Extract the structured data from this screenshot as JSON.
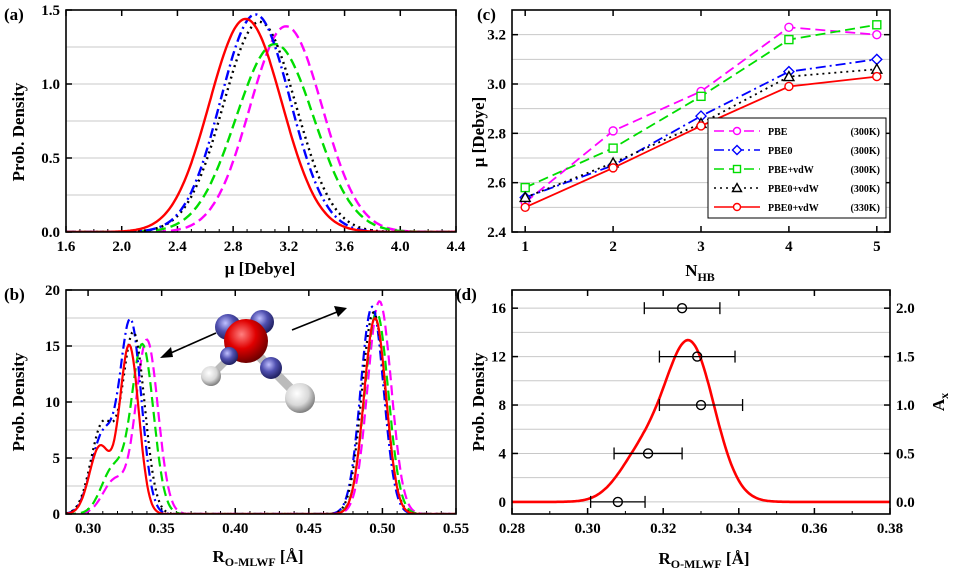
{
  "colors": {
    "magenta": "#ff00ff",
    "blue": "#0000ff",
    "green": "#00dd00",
    "black": "#000000",
    "red": "#ff0000",
    "grid": "#c8c8c8"
  },
  "chart_data": [
    {
      "panel": "(a)",
      "type": "line",
      "xlabel": "μ [Debye]",
      "ylabel": "Prob. Density",
      "xlim": [
        1.6,
        4.4
      ],
      "ylim": [
        0,
        1.5
      ],
      "xticks": [
        "1.6",
        "2.0",
        "2.4",
        "2.8",
        "3.2",
        "3.6",
        "4.0",
        "4.4"
      ],
      "yticks": [
        "0.0",
        "0.5",
        "1.0",
        "1.5"
      ],
      "grid": true,
      "series": [
        {
          "color": "magenta",
          "dash": "10,5",
          "peak_x": 3.18,
          "peak_y": 1.39,
          "width": 0.26
        },
        {
          "color": "green",
          "dash": "10,5",
          "peak_x": 3.1,
          "peak_y": 1.27,
          "width": 0.28
        },
        {
          "color": "black",
          "dash": "2,4",
          "peak_x": 2.99,
          "peak_y": 1.42,
          "width": 0.26
        },
        {
          "color": "blue",
          "dash": "10,4,2,4",
          "peak_x": 2.96,
          "peak_y": 1.47,
          "width": 0.25
        },
        {
          "color": "red",
          "dash": "",
          "peak_x": 2.89,
          "peak_y": 1.44,
          "width": 0.26
        }
      ]
    },
    {
      "panel": "(b)",
      "type": "line",
      "xlabel": "R",
      "xlabel_sub": "O-MLWF",
      "xlabel_unit": " [Å]",
      "ylabel": "Prob. Density",
      "xlim": [
        0.285,
        0.55
      ],
      "ylim": [
        0,
        20
      ],
      "xticks": [
        "0.30",
        "0.35",
        "0.40",
        "0.45",
        "0.50",
        "0.55"
      ],
      "yticks": [
        "0",
        "5",
        "10",
        "15",
        "20"
      ],
      "grid": true,
      "series": [
        {
          "color": "magenta",
          "dash": "10,5",
          "peaks": [
            [
              0.34,
              15.5,
              0.0075
            ],
            [
              0.498,
              19.0,
              0.008
            ]
          ],
          "shoulder": [
            0.318,
            3.0,
            0.008
          ]
        },
        {
          "color": "green",
          "dash": "10,5",
          "peaks": [
            [
              0.337,
              15.0,
              0.0075
            ],
            [
              0.496,
              18.0,
              0.008
            ]
          ],
          "shoulder": [
            0.317,
            4.0,
            0.008
          ]
        },
        {
          "color": "blue",
          "dash": "10,4,2,4",
          "peaks": [
            [
              0.329,
              17.0,
              0.0072
            ],
            [
              0.493,
              18.5,
              0.0078
            ]
          ],
          "shoulder": [
            0.31,
            7.0,
            0.008
          ]
        },
        {
          "color": "black",
          "dash": "2,4",
          "peaks": [
            [
              0.331,
              16.0,
              0.0075
            ],
            [
              0.494,
              18.0,
              0.008
            ]
          ],
          "shoulder": [
            0.31,
            8.0,
            0.008
          ]
        },
        {
          "color": "red",
          "dash": "",
          "peaks": [
            [
              0.328,
              15.0,
              0.0065
            ],
            [
              0.495,
              17.5,
              0.0075
            ]
          ],
          "shoulder": [
            0.308,
            6.0,
            0.007
          ]
        }
      ]
    },
    {
      "panel": "(c)",
      "type": "line",
      "xlabel": "N",
      "xlabel_sub": "HB",
      "ylabel": "μ [Debye]",
      "xlim": [
        0.85,
        5.15
      ],
      "ylim": [
        2.4,
        3.3
      ],
      "xticks": [
        "1",
        "2",
        "3",
        "4",
        "5"
      ],
      "yticks": [
        "2.4",
        "2.6",
        "2.8",
        "3.0",
        "3.2"
      ],
      "grid": true,
      "x": [
        1,
        2,
        3,
        4,
        5
      ],
      "series": [
        {
          "name": "PBE",
          "temp": "(300K)",
          "color": "magenta",
          "dash": "10,5",
          "marker": "circle",
          "values": [
            2.52,
            2.81,
            2.97,
            3.23,
            3.2
          ]
        },
        {
          "name": "PBE0",
          "temp": "(300K)",
          "color": "blue",
          "dash": "10,4,2,4",
          "marker": "diamond",
          "values": [
            2.54,
            2.67,
            2.87,
            3.05,
            3.1
          ]
        },
        {
          "name": "PBE+vdW",
          "temp": "(300K)",
          "color": "green",
          "dash": "10,5",
          "marker": "square",
          "values": [
            2.58,
            2.74,
            2.95,
            3.18,
            3.24
          ]
        },
        {
          "name": "PBE0+vdW",
          "temp": "(300K)",
          "color": "black",
          "dash": "2,4",
          "marker": "triangle",
          "values": [
            2.54,
            2.68,
            2.84,
            3.03,
            3.06
          ]
        },
        {
          "name": "PBE0+vdW",
          "temp": "(330K)",
          "color": "red",
          "dash": "",
          "marker": "circle",
          "values": [
            2.5,
            2.66,
            2.83,
            2.99,
            3.03
          ]
        }
      ]
    },
    {
      "panel": "(d)",
      "type": "line",
      "xlabel": "R",
      "xlabel_sub": "O-MLWF",
      "xlabel_unit": " [Å]",
      "ylabel": "Prob. Density",
      "ylabel_right": "A",
      "ylabel_right_sub": "x",
      "xlim": [
        0.28,
        0.38
      ],
      "ylim": [
        -1,
        17.5
      ],
      "ylim_right": [
        -0.125,
        2.1875
      ],
      "xticks": [
        "0.28",
        "0.30",
        "0.32",
        "0.34",
        "0.36",
        "0.38"
      ],
      "yticks": [
        "0",
        "4",
        "8",
        "12",
        "16"
      ],
      "yticks_right": [
        "0.0",
        "0.5",
        "1.0",
        "1.5",
        "2.0"
      ],
      "grid": true,
      "curve": {
        "color": "red",
        "peaks": [
          [
            0.327,
            13.0,
            0.0065
          ],
          [
            0.314,
            3.5,
            0.006
          ]
        ]
      },
      "errorbars": [
        {
          "ax": 0.0,
          "x": 0.308,
          "err": 0.0072
        },
        {
          "ax": 0.5,
          "x": 0.316,
          "err": 0.009
        },
        {
          "ax": 1.0,
          "x": 0.33,
          "err": 0.011
        },
        {
          "ax": 1.5,
          "x": 0.329,
          "err": 0.01
        },
        {
          "ax": 2.0,
          "x": 0.325,
          "err": 0.01
        }
      ]
    }
  ]
}
